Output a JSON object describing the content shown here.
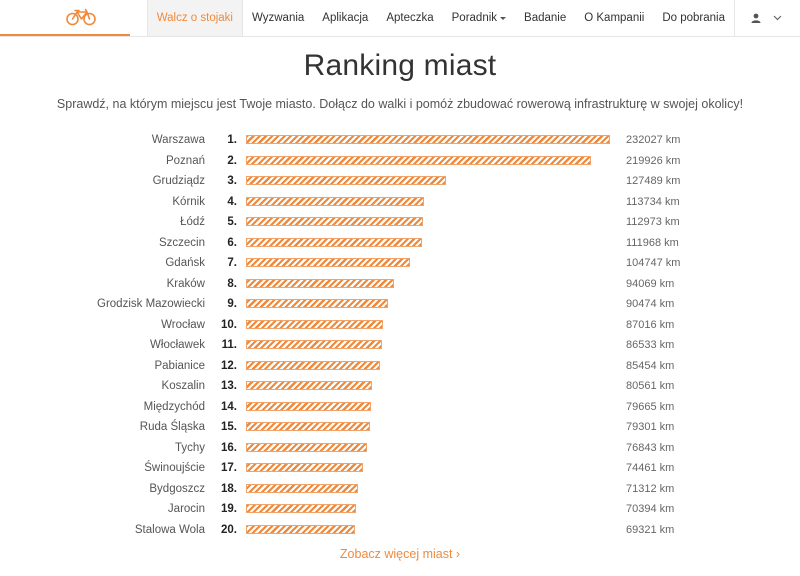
{
  "nav": {
    "items": [
      {
        "label": "Walcz o stojaki",
        "active": true
      },
      {
        "label": "Wyzwania"
      },
      {
        "label": "Aplikacja"
      },
      {
        "label": "Apteczka"
      },
      {
        "label": "Poradnik",
        "dropdown": true
      },
      {
        "label": "Badanie"
      },
      {
        "label": "O Kampanii"
      },
      {
        "label": "Do pobrania"
      }
    ],
    "accent": "#ef8a3c"
  },
  "page": {
    "title": "Ranking miast",
    "subtitle": "Sprawdź, na którym miejscu jest Twoje miasto. Dołącz do walki i pomóż zbudować rowerową infrastrukturę w swojej okolicy!",
    "more_link": "Zobacz więcej miast ›"
  },
  "ranking": {
    "unit": "km",
    "rows": [
      {
        "rank": "1.",
        "city": "Warszawa",
        "km": 232027
      },
      {
        "rank": "2.",
        "city": "Poznań",
        "km": 219926
      },
      {
        "rank": "3.",
        "city": "Grudziądz",
        "km": 127489
      },
      {
        "rank": "4.",
        "city": "Kórnik",
        "km": 113734
      },
      {
        "rank": "5.",
        "city": "Łódź",
        "km": 112973
      },
      {
        "rank": "6.",
        "city": "Szczecin",
        "km": 111968
      },
      {
        "rank": "7.",
        "city": "Gdańsk",
        "km": 104747
      },
      {
        "rank": "8.",
        "city": "Kraków",
        "km": 94069
      },
      {
        "rank": "9.",
        "city": "Grodzisk Mazowiecki",
        "km": 90474
      },
      {
        "rank": "10.",
        "city": "Wrocław",
        "km": 87016
      },
      {
        "rank": "11.",
        "city": "Włocławek",
        "km": 86533
      },
      {
        "rank": "12.",
        "city": "Pabianice",
        "km": 85454
      },
      {
        "rank": "13.",
        "city": "Koszalin",
        "km": 80561
      },
      {
        "rank": "14.",
        "city": "Międzychód",
        "km": 79665
      },
      {
        "rank": "15.",
        "city": "Ruda Śląska",
        "km": 79301
      },
      {
        "rank": "16.",
        "city": "Tychy",
        "km": 76843
      },
      {
        "rank": "17.",
        "city": "Świnoujście",
        "km": 74461
      },
      {
        "rank": "18.",
        "city": "Bydgoszcz",
        "km": 71312
      },
      {
        "rank": "19.",
        "city": "Jarocin",
        "km": 70394
      },
      {
        "rank": "20.",
        "city": "Stalowa Wola",
        "km": 69321
      }
    ]
  },
  "icons": {
    "logo": "bicycle-logo-icon",
    "user": "user-icon",
    "user_menu": "chevron-down-icon"
  }
}
